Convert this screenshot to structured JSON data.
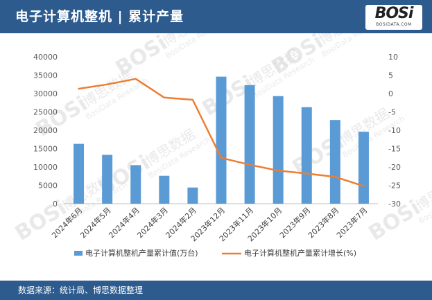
{
  "header": {
    "title": "电子计算机整机 | 累计产量",
    "logo_text": "BOSi",
    "logo_subtext": "BOSIDATA.COM"
  },
  "watermark": {
    "brand": "BOSi",
    "cn": "博思数据",
    "en": "BosiData Research"
  },
  "footer": {
    "source": "数据来源：统计局、博思数据整理"
  },
  "chart_data": {
    "type": "bar",
    "categories": [
      "2024年6月",
      "2024年5月",
      "2024年4月",
      "2024年3月",
      "2024年2月",
      "2023年12月",
      "2023年11月",
      "2023年10月",
      "2023年9月",
      "2023年8月",
      "2023年7月"
    ],
    "series": [
      {
        "name": "电子计算机整机产量累计值(万台)",
        "type": "bar",
        "axis": "left",
        "color": "#5b9bd5",
        "values": [
          16300,
          13300,
          10500,
          7600,
          4400,
          34600,
          32300,
          29300,
          26300,
          22800,
          19600
        ]
      },
      {
        "name": "电子计算机整机产量累计增长(%)",
        "type": "line",
        "axis": "right",
        "color": "#ed7d31",
        "values": [
          1.3,
          2.5,
          4.0,
          -1.1,
          -1.7,
          -17.5,
          -19.4,
          -21.0,
          -21.8,
          -22.7,
          -25.2
        ]
      }
    ],
    "y_left": {
      "min": 0,
      "max": 40000,
      "ticks": [
        0,
        5000,
        10000,
        15000,
        20000,
        25000,
        30000,
        35000,
        40000
      ]
    },
    "y_right": {
      "min": -30,
      "max": 10,
      "ticks": [
        -30,
        -25,
        -20,
        -15,
        -10,
        -5,
        0,
        5,
        10
      ]
    },
    "legend_position": "bottom",
    "grid": false
  }
}
